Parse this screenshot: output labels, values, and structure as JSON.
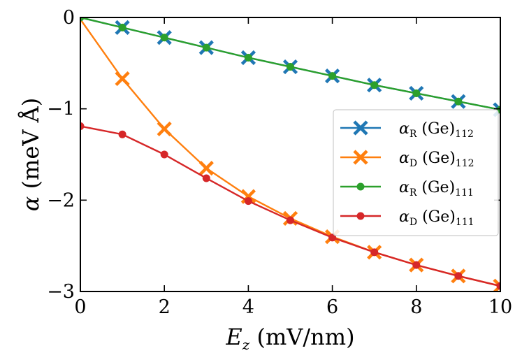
{
  "chart_data": {
    "type": "line",
    "xlabel": "E_z (mV/nm)",
    "ylabel": "α (meV Å)",
    "xlim": [
      0,
      10
    ],
    "ylim": [
      -3,
      0
    ],
    "x_ticks": [
      0,
      2,
      4,
      6,
      8,
      10
    ],
    "y_ticks": [
      0,
      -1,
      -2,
      -3
    ],
    "x_tick_labels": [
      "0",
      "2",
      "4",
      "6",
      "8",
      "10"
    ],
    "y_tick_labels": [
      "0",
      "−1",
      "−2",
      "−3"
    ],
    "grid": false,
    "legend_position": "right",
    "x": [
      0,
      1,
      2,
      3,
      4,
      5,
      6,
      7,
      8,
      9,
      10
    ],
    "series": [
      {
        "name": "αR (Ge)112",
        "name_main": "α",
        "name_sub1": "R",
        "name_mid": " (Ge)",
        "name_sub2": "112",
        "marker": "x",
        "color": "#1f77b4",
        "values": [
          0,
          -0.11,
          -0.22,
          -0.33,
          -0.44,
          -0.54,
          -0.64,
          -0.74,
          -0.83,
          -0.92,
          -1.01
        ]
      },
      {
        "name": "αD (Ge)112",
        "name_main": "α",
        "name_sub1": "D",
        "name_mid": " (Ge)",
        "name_sub2": "112",
        "marker": "x",
        "color": "#ff7f0e",
        "values": [
          -0.02,
          -0.67,
          -1.22,
          -1.65,
          -1.96,
          -2.2,
          -2.4,
          -2.57,
          -2.71,
          -2.83,
          -2.94
        ]
      },
      {
        "name": "αR (Ge)111",
        "name_main": "α",
        "name_sub1": "R",
        "name_mid": " (Ge)",
        "name_sub2": "111",
        "marker": "circle",
        "color": "#2ca02c",
        "values": [
          0,
          -0.11,
          -0.22,
          -0.33,
          -0.44,
          -0.54,
          -0.64,
          -0.74,
          -0.83,
          -0.92,
          -1.01
        ]
      },
      {
        "name": "αD (Ge)111",
        "name_main": "α",
        "name_sub1": "D",
        "name_mid": " (Ge)",
        "name_sub2": "111",
        "marker": "circle",
        "color": "#d62728",
        "values": [
          -1.19,
          -1.28,
          -1.5,
          -1.76,
          -2.01,
          -2.22,
          -2.41,
          -2.57,
          -2.71,
          -2.83,
          -2.94
        ]
      }
    ]
  }
}
